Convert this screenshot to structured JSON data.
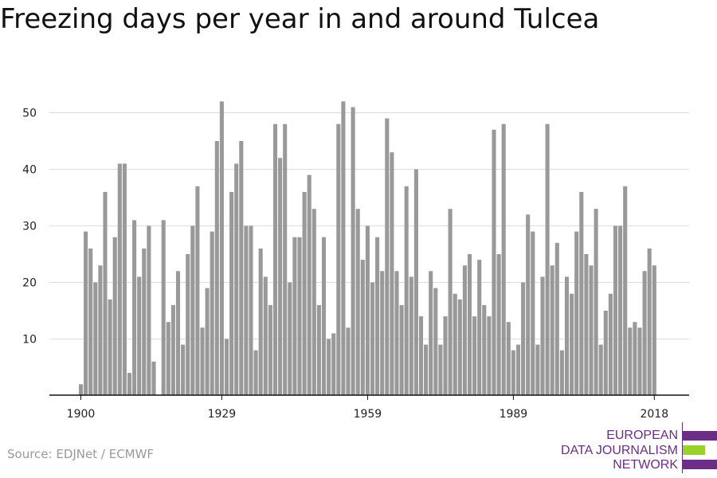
{
  "header": {
    "title": "Freezing days per year in and around Tulcea"
  },
  "footer": {
    "source": "Source: EDJNet / ECMWF"
  },
  "logo": {
    "lines": [
      "EUROPEAN",
      "DATA JOURNALISM",
      "NETWORK"
    ],
    "colors": {
      "purple": "#6b2d86",
      "green": "#9bd22a"
    }
  },
  "chart_data": {
    "type": "bar",
    "title": "Freezing days per year in and around Tulcea",
    "xlabel": "",
    "ylabel": "",
    "x": [
      1900,
      1901,
      1902,
      1903,
      1904,
      1905,
      1906,
      1907,
      1908,
      1909,
      1910,
      1911,
      1912,
      1913,
      1914,
      1915,
      1916,
      1917,
      1918,
      1919,
      1920,
      1921,
      1922,
      1923,
      1924,
      1925,
      1926,
      1927,
      1928,
      1929,
      1930,
      1931,
      1932,
      1933,
      1934,
      1935,
      1936,
      1937,
      1938,
      1939,
      1940,
      1941,
      1942,
      1943,
      1944,
      1945,
      1946,
      1947,
      1948,
      1949,
      1950,
      1951,
      1952,
      1953,
      1954,
      1955,
      1956,
      1957,
      1958,
      1959,
      1960,
      1961,
      1962,
      1963,
      1964,
      1965,
      1966,
      1967,
      1968,
      1969,
      1970,
      1971,
      1972,
      1973,
      1974,
      1975,
      1976,
      1977,
      1978,
      1979,
      1980,
      1981,
      1982,
      1983,
      1984,
      1985,
      1986,
      1987,
      1988,
      1989,
      1990,
      1991,
      1992,
      1993,
      1994,
      1995,
      1996,
      1997,
      1998,
      1999,
      2000,
      2001,
      2002,
      2003,
      2004,
      2005,
      2006,
      2007,
      2008,
      2009,
      2010,
      2011,
      2012,
      2013,
      2014,
      2015,
      2016,
      2017,
      2018
    ],
    "values": [
      2,
      29,
      26,
      20,
      23,
      36,
      17,
      28,
      41,
      41,
      4,
      31,
      21,
      26,
      30,
      6,
      0,
      31,
      13,
      16,
      22,
      9,
      25,
      30,
      37,
      12,
      19,
      29,
      45,
      52,
      10,
      36,
      41,
      45,
      30,
      30,
      8,
      26,
      21,
      16,
      48,
      42,
      48,
      20,
      28,
      28,
      36,
      39,
      33,
      16,
      28,
      10,
      11,
      48,
      52,
      12,
      51,
      33,
      24,
      30,
      20,
      28,
      22,
      49,
      43,
      22,
      16,
      37,
      21,
      40,
      14,
      9,
      22,
      19,
      9,
      14,
      33,
      18,
      17,
      23,
      25,
      14,
      24,
      16,
      14,
      47,
      25,
      48,
      13,
      8,
      9,
      20,
      32,
      29,
      9,
      21,
      48,
      23,
      27,
      8,
      21,
      18,
      29,
      36,
      25,
      23,
      33,
      9,
      15,
      18,
      30,
      30,
      37,
      12,
      13,
      12,
      22,
      26,
      23
    ],
    "x_ticks": [
      1900,
      1929,
      1959,
      1989,
      2018
    ],
    "y_ticks": [
      10,
      20,
      30,
      40,
      50
    ],
    "xlim": [
      1900,
      2018
    ],
    "ylim": [
      0,
      55
    ],
    "grid": true,
    "bar_color": "#999999"
  }
}
